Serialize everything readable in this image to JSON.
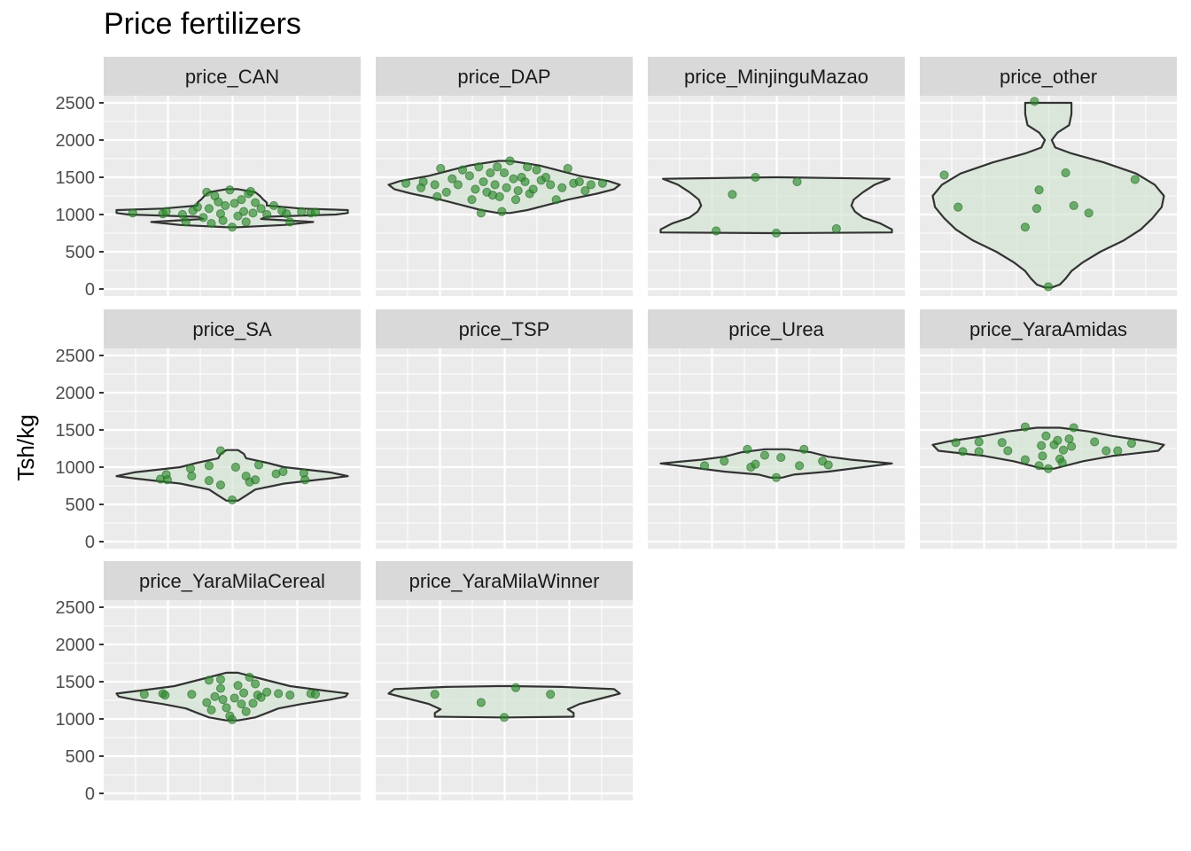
{
  "chart_data": {
    "type": "violin",
    "title": "Price fertilizers",
    "ylabel": "Tsh/kg",
    "xlabel": "",
    "ylim": [
      0,
      2500
    ],
    "y_ticks": [
      0,
      500,
      1000,
      1500,
      2000,
      2500
    ],
    "grid": true,
    "legend": "none",
    "colors": {
      "panel_bg": "#ebebeb",
      "strip_bg": "#d9d9d9",
      "grid": "#ffffff",
      "violin_fill": "#d4e4d4",
      "violin_stroke": "#333333",
      "point": "#2e8b2e",
      "point_stroke": "#1f6b1f"
    },
    "panels": [
      {
        "name": "price_CAN",
        "outline": [
          [
            830,
            0.05
          ],
          [
            860,
            0.45
          ],
          [
            900,
            0.7
          ],
          [
            940,
            0.25
          ],
          [
            970,
            0.3
          ],
          [
            1000,
            0.9
          ],
          [
            1020,
            1.0
          ],
          [
            1060,
            1.0
          ],
          [
            1080,
            0.6
          ],
          [
            1120,
            0.3
          ],
          [
            1160,
            0.3
          ],
          [
            1200,
            0.27
          ],
          [
            1250,
            0.24
          ],
          [
            1300,
            0.2
          ],
          [
            1340,
            0.05
          ]
        ],
        "points": [
          [
            -0.86,
            1020
          ],
          [
            -0.6,
            1010
          ],
          [
            -0.57,
            1040
          ],
          [
            -0.43,
            1000
          ],
          [
            -0.4,
            900
          ],
          [
            -0.34,
            1050
          ],
          [
            -0.3,
            1100
          ],
          [
            -0.25,
            960
          ],
          [
            -0.22,
            1300
          ],
          [
            -0.2,
            1080
          ],
          [
            -0.18,
            880
          ],
          [
            -0.15,
            1250
          ],
          [
            -0.12,
            1170
          ],
          [
            -0.1,
            1010
          ],
          [
            -0.08,
            920
          ],
          [
            -0.06,
            1120
          ],
          [
            -0.02,
            1330
          ],
          [
            0.0,
            830
          ],
          [
            0.02,
            1150
          ],
          [
            0.05,
            980
          ],
          [
            0.08,
            1200
          ],
          [
            0.1,
            1040
          ],
          [
            0.12,
            900
          ],
          [
            0.14,
            1280
          ],
          [
            0.16,
            1310
          ],
          [
            0.18,
            1020
          ],
          [
            0.2,
            1160
          ],
          [
            0.25,
            1080
          ],
          [
            0.3,
            1000
          ],
          [
            0.36,
            1120
          ],
          [
            0.43,
            1050
          ],
          [
            0.47,
            1010
          ],
          [
            0.5,
            900
          ],
          [
            0.6,
            1040
          ],
          [
            0.68,
            1020
          ],
          [
            0.72,
            1030
          ]
        ]
      },
      {
        "name": "price_DAP",
        "outline": [
          [
            1020,
            0.05
          ],
          [
            1060,
            0.2
          ],
          [
            1120,
            0.35
          ],
          [
            1200,
            0.55
          ],
          [
            1280,
            0.8
          ],
          [
            1340,
            0.95
          ],
          [
            1400,
            1.0
          ],
          [
            1450,
            0.9
          ],
          [
            1520,
            0.65
          ],
          [
            1600,
            0.45
          ],
          [
            1660,
            0.3
          ],
          [
            1720,
            0.05
          ]
        ],
        "points": [
          [
            -0.85,
            1420
          ],
          [
            -0.72,
            1360
          ],
          [
            -0.7,
            1440
          ],
          [
            -0.6,
            1400
          ],
          [
            -0.58,
            1240
          ],
          [
            -0.55,
            1620
          ],
          [
            -0.5,
            1300
          ],
          [
            -0.45,
            1480
          ],
          [
            -0.4,
            1400
          ],
          [
            -0.36,
            1600
          ],
          [
            -0.3,
            1520
          ],
          [
            -0.28,
            1200
          ],
          [
            -0.25,
            1340
          ],
          [
            -0.22,
            1640
          ],
          [
            -0.2,
            1020
          ],
          [
            -0.18,
            1440
          ],
          [
            -0.15,
            1300
          ],
          [
            -0.12,
            1560
          ],
          [
            -0.1,
            1260
          ],
          [
            -0.08,
            1400
          ],
          [
            -0.06,
            1640
          ],
          [
            -0.04,
            1240
          ],
          [
            -0.02,
            1040
          ],
          [
            0.0,
            1560
          ],
          [
            0.02,
            1360
          ],
          [
            0.05,
            1720
          ],
          [
            0.08,
            1480
          ],
          [
            0.1,
            1200
          ],
          [
            0.12,
            1320
          ],
          [
            0.15,
            1500
          ],
          [
            0.18,
            1440
          ],
          [
            0.2,
            1640
          ],
          [
            0.22,
            1280
          ],
          [
            0.25,
            1340
          ],
          [
            0.28,
            1600
          ],
          [
            0.32,
            1460
          ],
          [
            0.36,
            1500
          ],
          [
            0.4,
            1400
          ],
          [
            0.45,
            1200
          ],
          [
            0.5,
            1360
          ],
          [
            0.55,
            1620
          ],
          [
            0.6,
            1420
          ],
          [
            0.65,
            1440
          ],
          [
            0.7,
            1320
          ],
          [
            0.75,
            1400
          ],
          [
            0.85,
            1420
          ]
        ]
      },
      {
        "name": "price_MinjinguMazao",
        "outline": [
          [
            750,
            0.02
          ],
          [
            760,
            1.0
          ],
          [
            800,
            1.0
          ],
          [
            880,
            0.9
          ],
          [
            960,
            0.75
          ],
          [
            1040,
            0.68
          ],
          [
            1120,
            0.65
          ],
          [
            1200,
            0.67
          ],
          [
            1300,
            0.75
          ],
          [
            1400,
            0.85
          ],
          [
            1480,
            0.98
          ],
          [
            1500,
            0.02
          ]
        ],
        "points": [
          [
            -0.52,
            780
          ],
          [
            -0.38,
            1270
          ],
          [
            -0.18,
            1500
          ],
          [
            0.0,
            750
          ],
          [
            0.18,
            1440
          ],
          [
            0.52,
            810
          ]
        ]
      },
      {
        "name": "price_other",
        "outline": [
          [
            20,
            0.03
          ],
          [
            60,
            0.1
          ],
          [
            140,
            0.15
          ],
          [
            240,
            0.2
          ],
          [
            360,
            0.3
          ],
          [
            500,
            0.45
          ],
          [
            650,
            0.65
          ],
          [
            800,
            0.8
          ],
          [
            950,
            0.9
          ],
          [
            1100,
            0.98
          ],
          [
            1250,
            1.0
          ],
          [
            1400,
            0.92
          ],
          [
            1550,
            0.76
          ],
          [
            1700,
            0.48
          ],
          [
            1820,
            0.2
          ],
          [
            1900,
            0.06
          ],
          [
            2000,
            0.03
          ],
          [
            2100,
            0.08
          ],
          [
            2200,
            0.18
          ],
          [
            2350,
            0.2
          ],
          [
            2500,
            0.2
          ]
        ],
        "points": [
          [
            -0.9,
            1530
          ],
          [
            -0.78,
            1100
          ],
          [
            -0.2,
            830
          ],
          [
            -0.12,
            2520
          ],
          [
            -0.08,
            1330
          ],
          [
            -0.1,
            1080
          ],
          [
            0.0,
            30
          ],
          [
            0.15,
            1560
          ],
          [
            0.22,
            1120
          ],
          [
            0.35,
            1020
          ],
          [
            0.75,
            1470
          ]
        ]
      },
      {
        "name": "price_SA",
        "outline": [
          [
            550,
            0.05
          ],
          [
            620,
            0.12
          ],
          [
            700,
            0.2
          ],
          [
            780,
            0.45
          ],
          [
            850,
            0.85
          ],
          [
            880,
            1.0
          ],
          [
            930,
            0.85
          ],
          [
            1000,
            0.45
          ],
          [
            1060,
            0.3
          ],
          [
            1120,
            0.12
          ],
          [
            1180,
            0.1
          ],
          [
            1230,
            0.05
          ]
        ],
        "points": [
          [
            -0.62,
            840
          ],
          [
            -0.57,
            900
          ],
          [
            -0.56,
            830
          ],
          [
            -0.36,
            980
          ],
          [
            -0.35,
            880
          ],
          [
            -0.2,
            820
          ],
          [
            -0.2,
            1020
          ],
          [
            -0.1,
            1220
          ],
          [
            -0.1,
            760
          ],
          [
            0.0,
            560
          ],
          [
            0.03,
            1000
          ],
          [
            0.12,
            880
          ],
          [
            0.15,
            800
          ],
          [
            0.2,
            830
          ],
          [
            0.23,
            1030
          ],
          [
            0.38,
            910
          ],
          [
            0.44,
            940
          ],
          [
            0.62,
            920
          ],
          [
            0.63,
            830
          ]
        ]
      },
      {
        "name": "price_TSP",
        "outline": [],
        "points": []
      },
      {
        "name": "price_Urea",
        "outline": [
          [
            860,
            0.05
          ],
          [
            900,
            0.15
          ],
          [
            940,
            0.45
          ],
          [
            1000,
            0.75
          ],
          [
            1050,
            1.0
          ],
          [
            1100,
            0.65
          ],
          [
            1140,
            0.45
          ],
          [
            1200,
            0.3
          ],
          [
            1240,
            0.1
          ]
        ],
        "points": [
          [
            -0.62,
            1020
          ],
          [
            -0.45,
            1080
          ],
          [
            -0.25,
            1240
          ],
          [
            -0.22,
            1000
          ],
          [
            -0.18,
            1040
          ],
          [
            -0.1,
            1160
          ],
          [
            0.0,
            860
          ],
          [
            0.04,
            1130
          ],
          [
            0.2,
            1020
          ],
          [
            0.24,
            1240
          ],
          [
            0.4,
            1080
          ],
          [
            0.45,
            1030
          ]
        ]
      },
      {
        "name": "price_YaraAmidas",
        "outline": [
          [
            980,
            0.05
          ],
          [
            1020,
            0.15
          ],
          [
            1080,
            0.3
          ],
          [
            1150,
            0.55
          ],
          [
            1220,
            0.95
          ],
          [
            1300,
            1.0
          ],
          [
            1350,
            0.85
          ],
          [
            1420,
            0.55
          ],
          [
            1480,
            0.35
          ],
          [
            1530,
            0.1
          ]
        ],
        "points": [
          [
            -0.8,
            1330
          ],
          [
            -0.74,
            1210
          ],
          [
            -0.6,
            1340
          ],
          [
            -0.6,
            1210
          ],
          [
            -0.4,
            1330
          ],
          [
            -0.35,
            1220
          ],
          [
            -0.2,
            1540
          ],
          [
            -0.2,
            1100
          ],
          [
            -0.08,
            1020
          ],
          [
            -0.06,
            1290
          ],
          [
            -0.05,
            1150
          ],
          [
            -0.02,
            1420
          ],
          [
            0.0,
            980
          ],
          [
            0.05,
            1300
          ],
          [
            0.08,
            1360
          ],
          [
            0.1,
            1110
          ],
          [
            0.12,
            1060
          ],
          [
            0.13,
            1230
          ],
          [
            0.18,
            1380
          ],
          [
            0.2,
            1280
          ],
          [
            0.22,
            1530
          ],
          [
            0.4,
            1340
          ],
          [
            0.5,
            1220
          ],
          [
            0.6,
            1220
          ],
          [
            0.72,
            1320
          ]
        ]
      },
      {
        "name": "price_YaraMilaCereal",
        "outline": [
          [
            980,
            0.05
          ],
          [
            1020,
            0.2
          ],
          [
            1080,
            0.3
          ],
          [
            1140,
            0.4
          ],
          [
            1200,
            0.6
          ],
          [
            1260,
            0.85
          ],
          [
            1300,
            0.98
          ],
          [
            1340,
            1.0
          ],
          [
            1380,
            0.8
          ],
          [
            1440,
            0.5
          ],
          [
            1500,
            0.35
          ],
          [
            1560,
            0.2
          ],
          [
            1620,
            0.05
          ]
        ],
        "points": [
          [
            -0.76,
            1330
          ],
          [
            -0.6,
            1340
          ],
          [
            -0.58,
            1320
          ],
          [
            -0.35,
            1330
          ],
          [
            -0.22,
            1220
          ],
          [
            -0.2,
            1520
          ],
          [
            -0.18,
            1120
          ],
          [
            -0.15,
            1300
          ],
          [
            -0.1,
            1410
          ],
          [
            -0.1,
            1530
          ],
          [
            -0.08,
            1260
          ],
          [
            -0.05,
            1150
          ],
          [
            -0.02,
            1040
          ],
          [
            0.0,
            990
          ],
          [
            0.02,
            1280
          ],
          [
            0.05,
            1450
          ],
          [
            0.08,
            1200
          ],
          [
            0.1,
            1350
          ],
          [
            0.12,
            1100
          ],
          [
            0.15,
            1560
          ],
          [
            0.18,
            1210
          ],
          [
            0.2,
            1470
          ],
          [
            0.22,
            1320
          ],
          [
            0.25,
            1290
          ],
          [
            0.3,
            1360
          ],
          [
            0.4,
            1340
          ],
          [
            0.5,
            1320
          ],
          [
            0.68,
            1340
          ],
          [
            0.72,
            1330
          ]
        ]
      },
      {
        "name": "price_YaraMilaWinner",
        "outline": [
          [
            1020,
            0.05
          ],
          [
            1030,
            0.6
          ],
          [
            1080,
            0.6
          ],
          [
            1130,
            0.55
          ],
          [
            1200,
            0.65
          ],
          [
            1280,
            0.85
          ],
          [
            1340,
            1.0
          ],
          [
            1400,
            0.95
          ],
          [
            1430,
            0.5
          ],
          [
            1440,
            0.05
          ]
        ],
        "points": [
          [
            -0.6,
            1330
          ],
          [
            -0.2,
            1220
          ],
          [
            0.0,
            1020
          ],
          [
            0.1,
            1420
          ],
          [
            0.4,
            1330
          ]
        ]
      }
    ]
  }
}
